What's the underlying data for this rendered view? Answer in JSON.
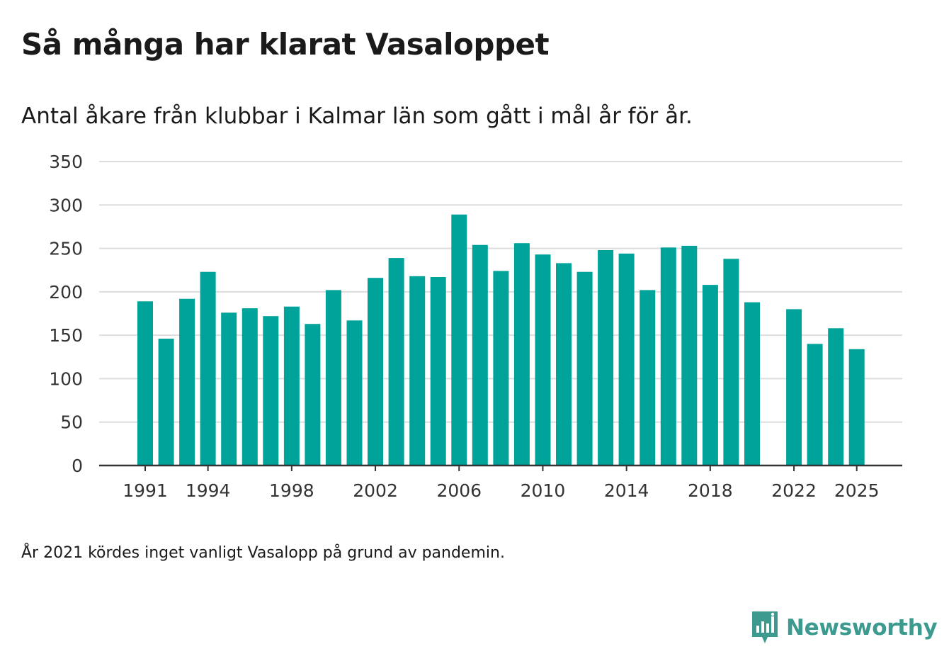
{
  "title": "Så många har klarat Vasaloppet",
  "subtitle": "Antal åkare från klubbar i Kalmar län som gått i mål år för år.",
  "note": "År 2021 kördes inget vanligt Vasalopp på grund av pandemin.",
  "brand": {
    "name": "Newsworthy",
    "icon": "newsworthy-logo-icon",
    "color": "#3c9a8e"
  },
  "colors": {
    "bar": "#00a39a",
    "grid": "#dddddd",
    "axis": "#333333",
    "text": "#1a1a1a"
  },
  "chart_data": {
    "type": "bar",
    "title": "Så många har klarat Vasaloppet",
    "subtitle": "Antal åkare från klubbar i Kalmar län som gått i mål år för år.",
    "xlabel": "",
    "ylabel": "",
    "ylim": [
      0,
      350
    ],
    "yticks": [
      0,
      50,
      100,
      150,
      200,
      250,
      300,
      350
    ],
    "xticks": [
      1991,
      1994,
      1998,
      2002,
      2006,
      2010,
      2014,
      2018,
      2022,
      2025
    ],
    "x_range": [
      1991,
      2025
    ],
    "grid": true,
    "categories": [
      1991,
      1992,
      1993,
      1994,
      1995,
      1996,
      1997,
      1998,
      1999,
      2000,
      2001,
      2002,
      2003,
      2004,
      2005,
      2006,
      2007,
      2008,
      2009,
      2010,
      2011,
      2012,
      2013,
      2014,
      2015,
      2016,
      2017,
      2018,
      2019,
      2020,
      2021,
      2022,
      2023,
      2024,
      2025
    ],
    "values": [
      189,
      146,
      192,
      223,
      176,
      181,
      172,
      183,
      163,
      202,
      167,
      216,
      239,
      218,
      217,
      289,
      254,
      224,
      256,
      243,
      233,
      223,
      248,
      244,
      202,
      251,
      253,
      208,
      238,
      188,
      null,
      180,
      140,
      158,
      134
    ]
  }
}
